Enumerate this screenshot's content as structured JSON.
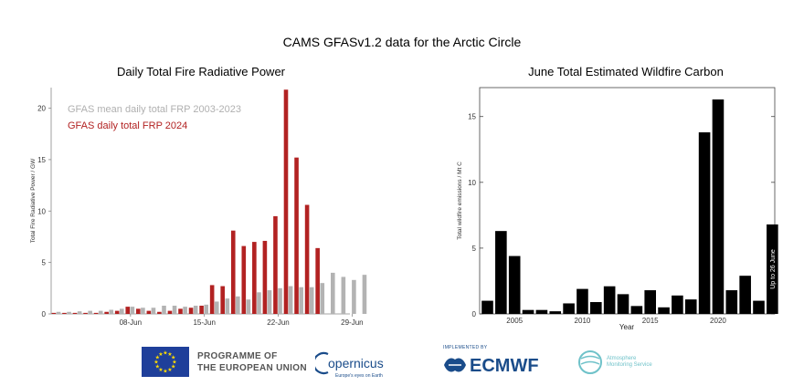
{
  "figure": {
    "title": "CAMS GFASv1.2 data for the Arctic Circle"
  },
  "chart_data": [
    {
      "type": "bar",
      "title": "Daily Total Fire Radiative Power",
      "ylabel": "Total Fire Radiative Power / GW",
      "xlabel": "",
      "ylim": [
        0,
        22
      ],
      "yticks": [
        0,
        5,
        10,
        15,
        20
      ],
      "xtick_labels": [
        {
          "label": "08-Jun",
          "day": 8
        },
        {
          "label": "15-Jun",
          "day": 15
        },
        {
          "label": "22-Jun",
          "day": 22
        },
        {
          "label": "29-Jun",
          "day": 29
        }
      ],
      "days": [
        1,
        2,
        3,
        4,
        5,
        6,
        7,
        8,
        9,
        10,
        11,
        12,
        13,
        14,
        15,
        16,
        17,
        18,
        19,
        20,
        21,
        22,
        23,
        24,
        25,
        26,
        27,
        28,
        29,
        30
      ],
      "series": [
        {
          "name": "GFAS mean daily total FRP 2003-2023",
          "color": "#b3b3b3",
          "values": [
            0.2,
            0.2,
            0.25,
            0.3,
            0.3,
            0.4,
            0.5,
            0.7,
            0.6,
            0.6,
            0.8,
            0.8,
            0.7,
            0.8,
            0.9,
            1.2,
            1.5,
            1.7,
            1.4,
            2.1,
            2.3,
            2.5,
            2.7,
            2.6,
            2.6,
            3.0,
            4.0,
            3.6,
            3.3,
            3.8
          ]
        },
        {
          "name": "GFAS daily total FRP 2024",
          "color": "#b22222",
          "values": [
            0.1,
            0.1,
            0.1,
            0.1,
            0.1,
            0.2,
            0.3,
            0.7,
            0.5,
            0.3,
            0.2,
            0.3,
            0.5,
            0.6,
            0.8,
            2.8,
            2.7,
            8.1,
            6.6,
            7.0,
            7.1,
            9.5,
            21.8,
            15.2,
            10.6,
            6.4,
            null,
            null,
            null,
            null
          ]
        }
      ],
      "legend_position": "top-left"
    },
    {
      "type": "bar",
      "title": "June Total Estimated Wildfire Carbon",
      "ylabel": "Total wildfire emissions / Mt C",
      "xlabel": "Year",
      "ylim": [
        0,
        17.2
      ],
      "yticks": [
        0,
        5,
        10,
        15
      ],
      "xticks": [
        2005,
        2010,
        2015,
        2020
      ],
      "categories": [
        2003,
        2004,
        2005,
        2006,
        2007,
        2008,
        2009,
        2010,
        2011,
        2012,
        2013,
        2014,
        2015,
        2016,
        2017,
        2018,
        2019,
        2020,
        2021,
        2022,
        2023,
        2024
      ],
      "values": [
        1.0,
        6.3,
        4.4,
        0.3,
        0.3,
        0.2,
        0.8,
        1.9,
        0.9,
        2.1,
        1.5,
        0.6,
        1.8,
        0.5,
        1.4,
        1.1,
        13.8,
        16.3,
        1.8,
        2.9,
        1.0,
        6.8
      ],
      "color": "#000000",
      "annotation": {
        "text": "Up to 26 June",
        "category": 2024
      }
    }
  ],
  "logos": {
    "eu_line1": "PROGRAMME OF",
    "eu_line2": "THE EUROPEAN UNION",
    "copernicus": "opernicus",
    "copernicus_tagline": "Europe's eyes on Earth",
    "ecmwf_sub": "IMPLEMENTED BY",
    "ecmwf": "ECMWF",
    "cams_line1": "Atmosphere",
    "cams_line2": "Monitoring Service"
  }
}
